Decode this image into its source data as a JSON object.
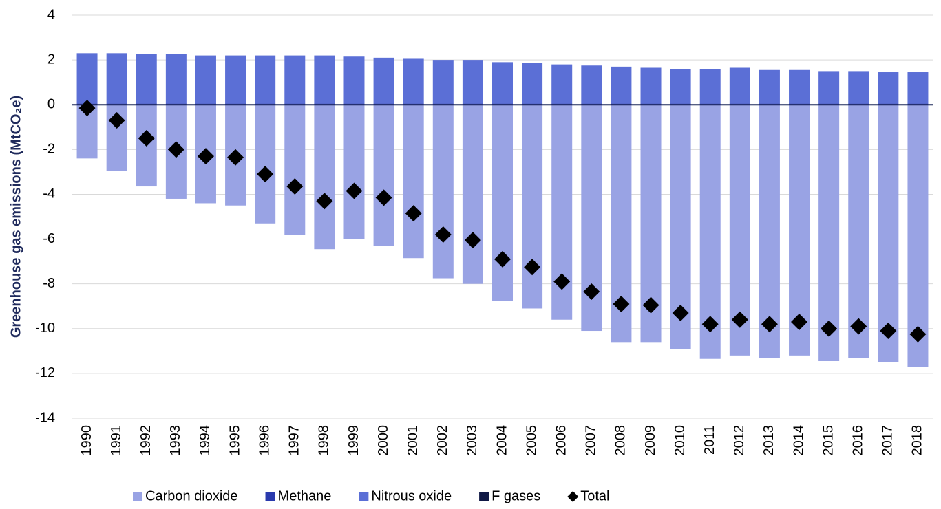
{
  "chart_data": {
    "type": "bar",
    "stacked": true,
    "y_label": "Greenhouse gas emissions (MtCO₂e)",
    "categories": [
      "1990",
      "1991",
      "1992",
      "1993",
      "1994",
      "1995",
      "1996",
      "1997",
      "1998",
      "1999",
      "2000",
      "2001",
      "2002",
      "2003",
      "2004",
      "2005",
      "2006",
      "2007",
      "2008",
      "2009",
      "2010",
      "2011",
      "2012",
      "2013",
      "2014",
      "2015",
      "2016",
      "2017",
      "2018"
    ],
    "series": [
      {
        "name": "Carbon dioxide",
        "color": "#99a3e4",
        "values": [
          -2.4,
          -2.95,
          -3.65,
          -4.2,
          -4.4,
          -4.5,
          -5.3,
          -5.8,
          -6.45,
          -6.0,
          -6.3,
          -6.85,
          -7.75,
          -8.0,
          -8.75,
          -9.1,
          -9.6,
          -10.1,
          -10.6,
          -10.6,
          -10.9,
          -11.35,
          -11.2,
          -11.3,
          -11.2,
          -11.45,
          -11.3,
          -11.5,
          -11.7
        ]
      },
      {
        "name": "Methane",
        "color": "#2a3aad",
        "values": [
          0.05,
          0.05,
          0.05,
          0.05,
          0.05,
          0.05,
          0.05,
          0.05,
          0.05,
          0.05,
          0.05,
          0.05,
          0.05,
          0.05,
          0.05,
          0.05,
          0.05,
          0.05,
          0.05,
          0.05,
          0.05,
          0.05,
          0.05,
          0.05,
          0.05,
          0.05,
          0.05,
          0.05,
          0.05
        ]
      },
      {
        "name": "Nitrous oxide",
        "color": "#5b6fd6",
        "values": [
          2.25,
          2.25,
          2.2,
          2.2,
          2.15,
          2.15,
          2.15,
          2.15,
          2.15,
          2.1,
          2.05,
          2.0,
          1.95,
          1.95,
          1.85,
          1.8,
          1.75,
          1.7,
          1.65,
          1.6,
          1.55,
          1.55,
          1.6,
          1.5,
          1.5,
          1.45,
          1.45,
          1.4,
          1.4
        ]
      },
      {
        "name": "F gases",
        "color": "#101845",
        "values": [
          0,
          0,
          0,
          0,
          0,
          0,
          0,
          0,
          0,
          0,
          0,
          0,
          0,
          0,
          0,
          0,
          0,
          0,
          0,
          0,
          0,
          0,
          0,
          0,
          0,
          0,
          0,
          0,
          0
        ]
      },
      {
        "name": "Total",
        "color": "#000000",
        "marker": "diamond",
        "values": [
          -0.15,
          -0.7,
          -1.5,
          -2.0,
          -2.3,
          -2.35,
          -3.1,
          -3.65,
          -4.3,
          -3.85,
          -4.15,
          -4.85,
          -5.8,
          -6.05,
          -6.9,
          -7.25,
          -7.9,
          -8.35,
          -8.9,
          -8.95,
          -9.3,
          -9.8,
          -9.6,
          -9.8,
          -9.7,
          -10.0,
          -9.9,
          -10.1,
          -10.25
        ]
      }
    ],
    "ylim": [
      -14,
      4
    ],
    "yticks": [
      -14,
      -12,
      -10,
      -8,
      -6,
      -4,
      -2,
      0,
      2,
      4
    ],
    "grid": true,
    "legend": "bottom"
  }
}
